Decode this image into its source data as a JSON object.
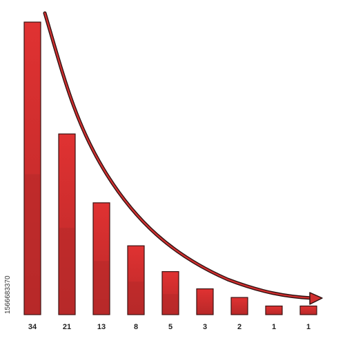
{
  "chart_data": {
    "type": "bar",
    "categories": [
      "34",
      "21",
      "13",
      "8",
      "5",
      "3",
      "2",
      "1",
      "1"
    ],
    "values": [
      34,
      21,
      13,
      8,
      5,
      3,
      2,
      1,
      1
    ],
    "ylim": [
      0,
      34
    ],
    "grid": false,
    "trend_curve": true,
    "colors": {
      "bar_fill": "#d62f2f",
      "bar_shade": "#b72a2a",
      "bar_stroke": "#3a1212",
      "curve_fill": "#cf2f2f",
      "curve_stroke": "#2a1010"
    }
  },
  "watermark_id": "1566683370"
}
